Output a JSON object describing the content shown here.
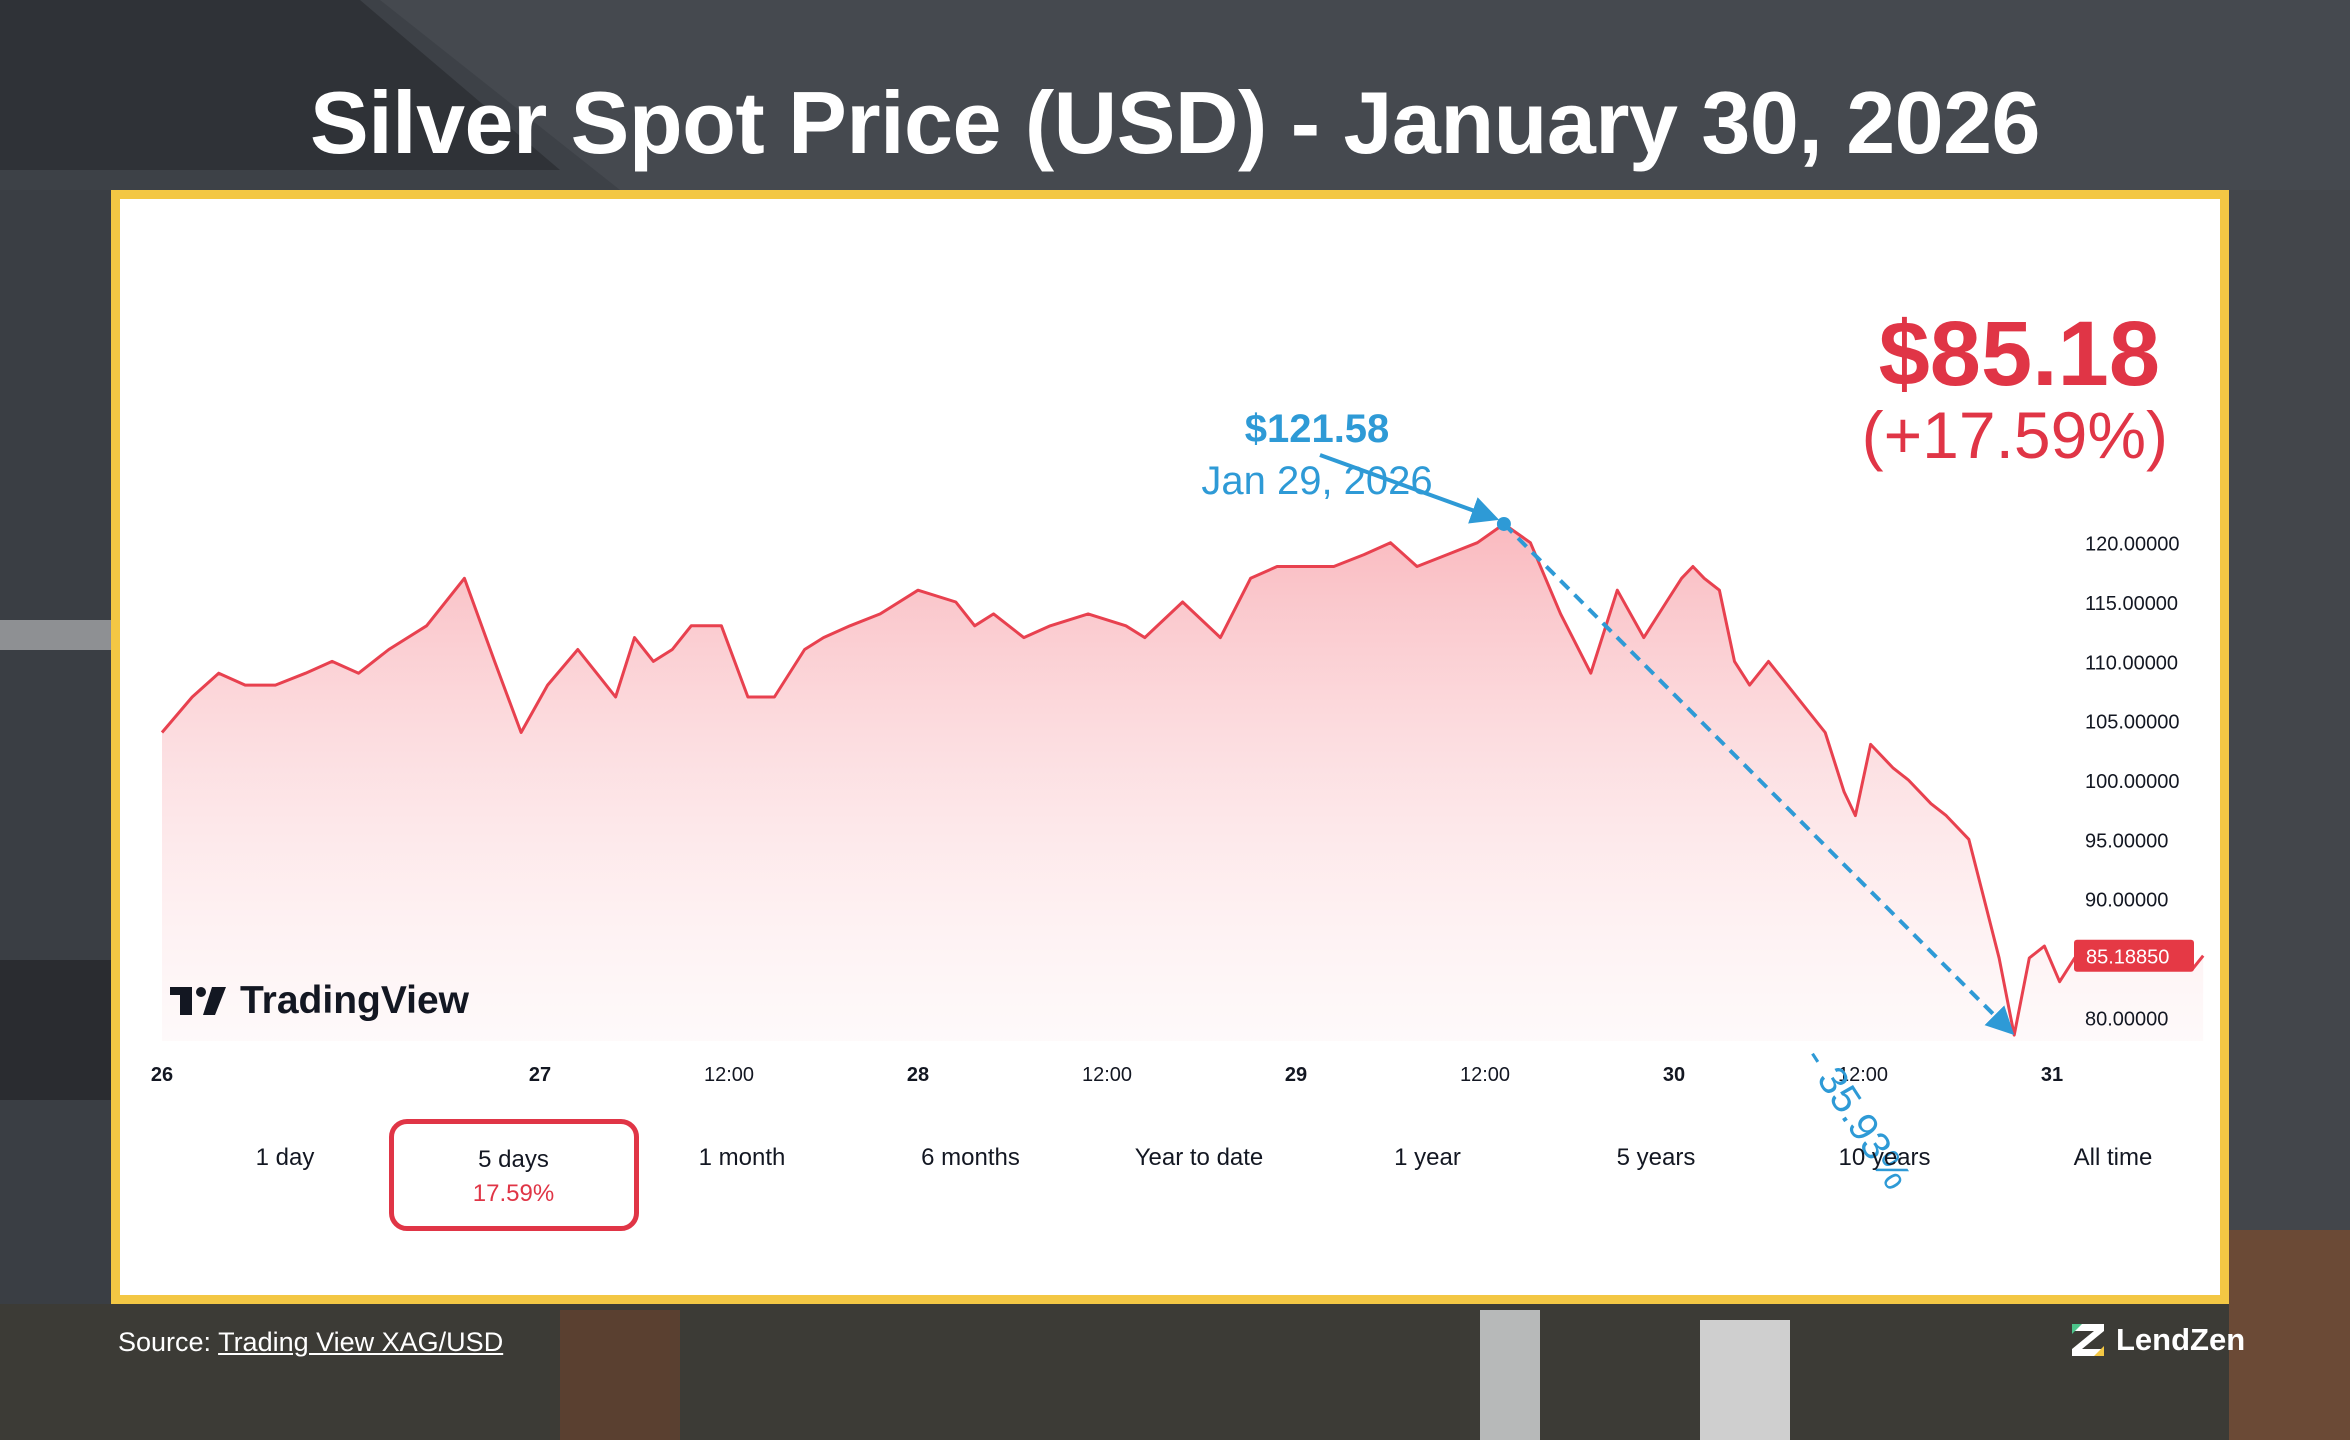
{
  "page": {
    "title": "Silver Spot Price (USD) - January 30, 2026",
    "source_prefix": "Source:",
    "source_link": "Trading View XAG/USD",
    "brand": "LendZen"
  },
  "headline": {
    "price": "$85.18",
    "change": "(+17.59%)"
  },
  "annotation": {
    "peak_price": "$121.58",
    "peak_date": "Jan 29, 2026",
    "drop_pct": "- 35.93%"
  },
  "logo": {
    "text": "TradingView"
  },
  "range_tabs": [
    {
      "label": "1 day"
    },
    {
      "label": "5 days",
      "change": "17.59%",
      "selected": true
    },
    {
      "label": "1 month"
    },
    {
      "label": "6 months"
    },
    {
      "label": "Year to date"
    },
    {
      "label": "1 year"
    },
    {
      "label": "5 years"
    },
    {
      "label": "10 years"
    },
    {
      "label": "All time"
    }
  ],
  "colors": {
    "series": "#e8414f",
    "fill_top": "#f9b6bc",
    "annotation": "#2e9ad6",
    "frame": "#f3c744",
    "last_price_badge": "#e53945"
  },
  "chart_data": {
    "type": "area",
    "title": "Silver Spot Price (USD) - January 30, 2026",
    "x_ticks": [
      "26",
      "27",
      "12:00",
      "28",
      "12:00",
      "29",
      "12:00",
      "30",
      "12:00",
      "31"
    ],
    "x_tick_positions": [
      0,
      1,
      1.5,
      2,
      2.5,
      3,
      3.5,
      4,
      4.5,
      5
    ],
    "x_range": [
      0,
      5.4
    ],
    "ylim": [
      78,
      122
    ],
    "y_ticks": [
      "120.00000",
      "115.00000",
      "110.00000",
      "105.00000",
      "100.00000",
      "95.00000",
      "90.00000",
      "80.00000"
    ],
    "y_tick_values": [
      120,
      115,
      110,
      105,
      100,
      95,
      90,
      80
    ],
    "last_price_label": "85.18850",
    "last_price": 85.1885,
    "grid": false,
    "series": [
      {
        "x": [
          0.0,
          0.08,
          0.15,
          0.22,
          0.3,
          0.38,
          0.45,
          0.52,
          0.6,
          0.7,
          0.8,
          0.88,
          0.95,
          1.02,
          1.1,
          1.15,
          1.2,
          1.25,
          1.3,
          1.35,
          1.4,
          1.48,
          1.55,
          1.62,
          1.7,
          1.75,
          1.82,
          1.9,
          2.0,
          2.1,
          2.15,
          2.2,
          2.28,
          2.35,
          2.45,
          2.55,
          2.6,
          2.7,
          2.8,
          2.88,
          2.95,
          3.02,
          3.1,
          3.18,
          3.25,
          3.32,
          3.4,
          3.48,
          3.55,
          3.62,
          3.7,
          3.78,
          3.85,
          3.92,
          3.98,
          4.02,
          4.05,
          4.08,
          4.12,
          4.16,
          4.2,
          4.25,
          4.3,
          4.35,
          4.4,
          4.45,
          4.48,
          4.52,
          4.58,
          4.62,
          4.68,
          4.72,
          4.78,
          4.82,
          4.86,
          4.9,
          4.94,
          4.98,
          5.02,
          5.06,
          5.1,
          5.14,
          5.17,
          5.2,
          5.22,
          5.24,
          5.26,
          5.28,
          5.3,
          5.34,
          5.37,
          5.4
        ],
        "y": [
          104,
          107,
          109,
          108,
          108,
          109,
          110,
          109,
          111,
          113,
          117,
          110,
          104,
          108,
          111,
          109,
          107,
          112,
          110,
          111,
          113,
          113,
          107,
          107,
          111,
          112,
          113,
          114,
          116,
          115,
          113,
          114,
          112,
          113,
          114,
          113,
          112,
          115,
          112,
          117,
          118,
          118,
          118,
          119,
          120,
          118,
          119,
          120,
          121.58,
          120,
          114,
          109,
          116,
          112,
          115,
          117,
          118,
          117,
          116,
          110,
          108,
          110,
          108,
          106,
          104,
          99,
          97,
          103,
          101,
          100,
          98,
          97,
          95,
          90,
          85,
          78.5,
          85,
          86,
          83,
          85,
          86,
          86,
          85,
          84,
          86,
          85,
          85,
          86,
          85,
          85.5,
          84,
          85.19
        ]
      }
    ],
    "peak_point": {
      "x": 3.55,
      "y": 121.58
    },
    "trough_point": {
      "x": 4.9,
      "y": 78.5
    }
  }
}
